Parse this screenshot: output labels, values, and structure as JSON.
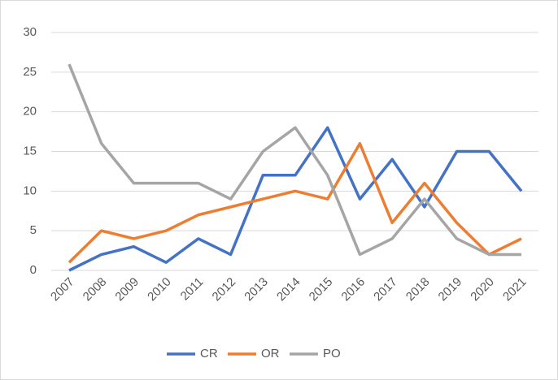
{
  "chart_data": {
    "type": "line",
    "categories": [
      "2007",
      "2008",
      "2009",
      "2010",
      "2011",
      "2012",
      "2013",
      "2014",
      "2015",
      "2016",
      "2017",
      "2018",
      "2019",
      "2020",
      "2021"
    ],
    "series": [
      {
        "name": "CR",
        "color": "#4472c4",
        "values": [
          0,
          2,
          3,
          1,
          4,
          2,
          12,
          12,
          18,
          9,
          14,
          8,
          15,
          15,
          10
        ]
      },
      {
        "name": "OR",
        "color": "#ed7d31",
        "values": [
          1,
          5,
          4,
          5,
          7,
          8,
          9,
          10,
          9,
          16,
          6,
          11,
          6,
          2,
          4
        ]
      },
      {
        "name": "PO",
        "color": "#a5a5a5",
        "values": [
          26,
          16,
          11,
          11,
          11,
          9,
          15,
          18,
          12,
          2,
          4,
          9,
          4,
          2,
          2
        ]
      }
    ],
    "ylim": [
      0,
      30
    ],
    "yticks": [
      0,
      5,
      10,
      15,
      20,
      25,
      30
    ],
    "grid": true,
    "legend": "bottom"
  }
}
